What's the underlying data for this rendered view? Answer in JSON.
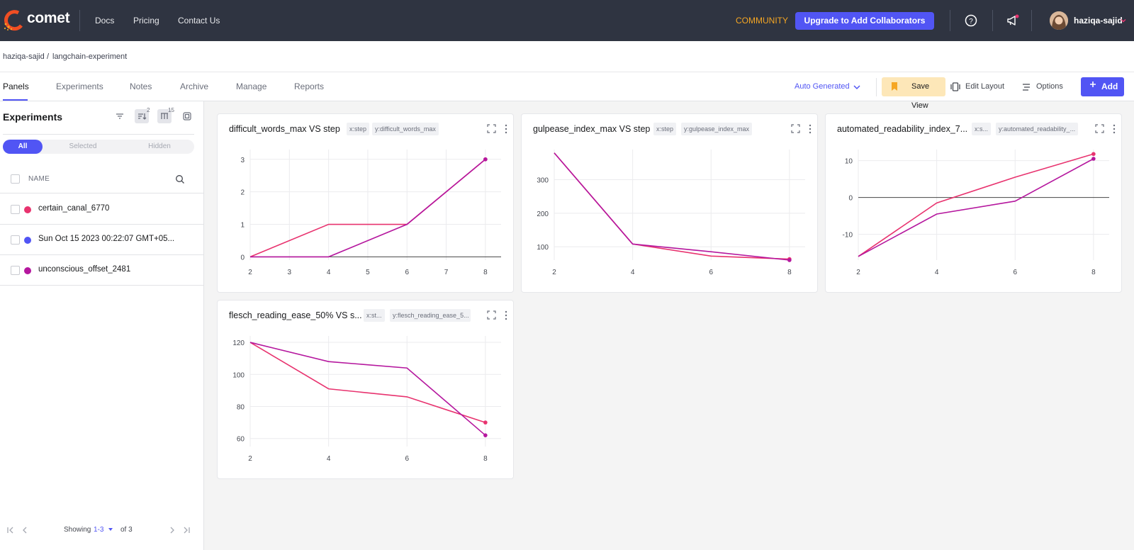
{
  "topbar": {
    "logo_text": "comet",
    "nav": [
      "Docs",
      "Pricing",
      "Contact Us"
    ],
    "community": "COMMUNITY",
    "upgrade": "Upgrade to Add Collaborators",
    "username": "haziqa-sajid",
    "colors": {
      "bg": "#2f3441",
      "community": "#f5a623",
      "primary": "#5155f4"
    }
  },
  "breadcrumb": {
    "workspace": "haziqa-sajid",
    "separator": "/",
    "project": "langchain-experiment"
  },
  "tabs": {
    "items": [
      "Panels",
      "Experiments",
      "Notes",
      "Archive",
      "Manage",
      "Reports"
    ],
    "active": "Panels",
    "auto_generated": "Auto Generated",
    "save_view": "Save View",
    "edit_layout": "Edit Layout",
    "options": "Options",
    "add": "Add"
  },
  "sidebar": {
    "title": "Experiments",
    "sort_badge": "2",
    "columns_badge": "15",
    "filters": [
      "All",
      "Selected",
      "Hidden"
    ],
    "active_filter": "All",
    "column_header": "NAME",
    "experiments": [
      {
        "name": "certain_canal_6770",
        "color": "#e8336f"
      },
      {
        "name": "Sun Oct 15 2023 00:22:07 GMT+05...",
        "color": "#5155f4"
      },
      {
        "name": "unconscious_offset_2481",
        "color": "#b5179e"
      }
    ],
    "pager": {
      "showing": "Showing",
      "range": "1-3",
      "of": "of 3"
    }
  },
  "panels": [
    {
      "title": "difficult_words_max VS step",
      "x_chip": "x:step",
      "y_chip": "y:difficult_words_max"
    },
    {
      "title": "gulpease_index_max VS step",
      "x_chip": "x:step",
      "y_chip": "y:gulpease_index_max"
    },
    {
      "title": "automated_readability_index_7...",
      "x_chip": "x:s...",
      "y_chip": "y:automated_readability_..."
    },
    {
      "title": "flesch_reading_ease_50% VS s...",
      "x_chip": "x:st...",
      "y_chip": "y:flesch_reading_ease_5..."
    }
  ],
  "chart_data": [
    {
      "type": "line",
      "title": "difficult_words_max VS step",
      "xticks": [
        2,
        3,
        4,
        5,
        6,
        7,
        8
      ],
      "yticks": [
        0,
        1,
        2,
        3
      ],
      "xlim": [
        2,
        8.4
      ],
      "ylim": [
        -0.1,
        3.3
      ],
      "grid": true,
      "series": [
        {
          "color": "#e8336f",
          "x": [
            2,
            4,
            6,
            8
          ],
          "y": [
            0,
            1,
            1,
            3
          ]
        },
        {
          "color": "#b5179e",
          "x": [
            2,
            4,
            6,
            8
          ],
          "y": [
            0,
            0,
            1,
            3
          ]
        }
      ]
    },
    {
      "type": "line",
      "title": "gulpease_index_max VS step",
      "xticks": [
        2,
        4,
        6,
        8
      ],
      "yticks": [
        100,
        200,
        300
      ],
      "xlim": [
        2,
        8.4
      ],
      "ylim": [
        60,
        390
      ],
      "grid": true,
      "series": [
        {
          "color": "#e8336f",
          "x": [
            2,
            4,
            6,
            8
          ],
          "y": [
            380,
            108,
            72,
            63
          ]
        },
        {
          "color": "#b5179e",
          "x": [
            2,
            4,
            6,
            8
          ],
          "y": [
            380,
            108,
            85,
            60
          ]
        }
      ]
    },
    {
      "type": "line",
      "title": "automated_readability_index_7...",
      "xticks": [
        2,
        4,
        6,
        8
      ],
      "yticks": [
        -10,
        0,
        10
      ],
      "xlim": [
        2,
        8.4
      ],
      "ylim": [
        -17,
        13
      ],
      "grid": true,
      "series": [
        {
          "color": "#e8336f",
          "x": [
            2,
            4,
            6,
            8
          ],
          "y": [
            -16,
            -1.5,
            5.5,
            11.8
          ]
        },
        {
          "color": "#b5179e",
          "x": [
            2,
            4,
            6,
            8
          ],
          "y": [
            -16,
            -4.5,
            -1,
            10.5
          ]
        }
      ]
    },
    {
      "type": "line",
      "title": "flesch_reading_ease_50% VS s...",
      "xticks": [
        2,
        4,
        6,
        8
      ],
      "yticks": [
        60,
        80,
        100,
        120
      ],
      "xlim": [
        2,
        8.4
      ],
      "ylim": [
        55,
        124
      ],
      "grid": true,
      "series": [
        {
          "color": "#e8336f",
          "x": [
            2,
            4,
            6,
            8
          ],
          "y": [
            120,
            91,
            86,
            70
          ]
        },
        {
          "color": "#b5179e",
          "x": [
            2,
            4,
            6,
            8
          ],
          "y": [
            120,
            108,
            104,
            62
          ]
        }
      ]
    }
  ]
}
